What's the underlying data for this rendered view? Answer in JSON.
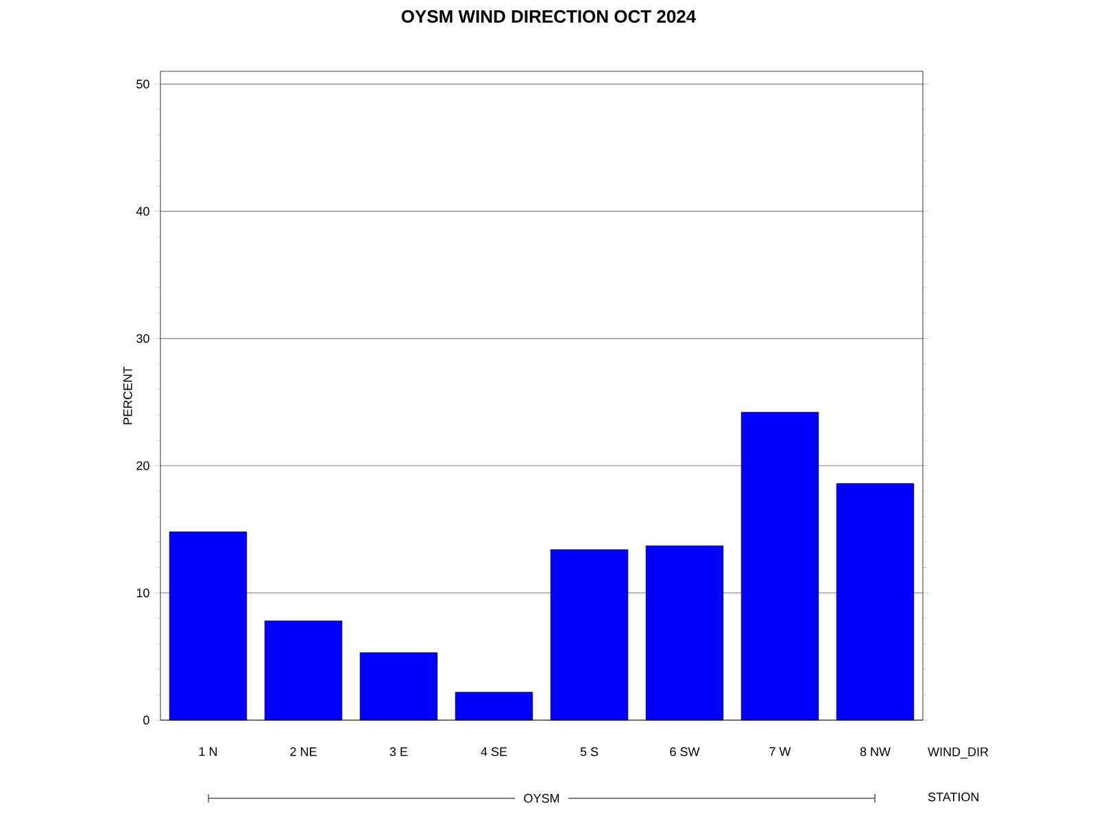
{
  "chart_data": {
    "type": "bar",
    "title": "OYSM WIND DIRECTION OCT 2024",
    "xlabel": "WIND_DIR",
    "ylabel": "PERCENT",
    "categories": [
      "1 N",
      "2 NE",
      "3 E",
      "4 SE",
      "5 S",
      "6 SW",
      "7 W",
      "8 NW"
    ],
    "values": [
      14.8,
      7.8,
      5.3,
      2.2,
      13.4,
      13.7,
      24.2,
      18.6
    ],
    "color": "#0000ff",
    "ylim": [
      0,
      51
    ],
    "yticks": [
      0,
      10,
      20,
      30,
      40,
      50
    ],
    "grid": "y",
    "annotations": [
      "OYSM",
      "STATION"
    ]
  }
}
